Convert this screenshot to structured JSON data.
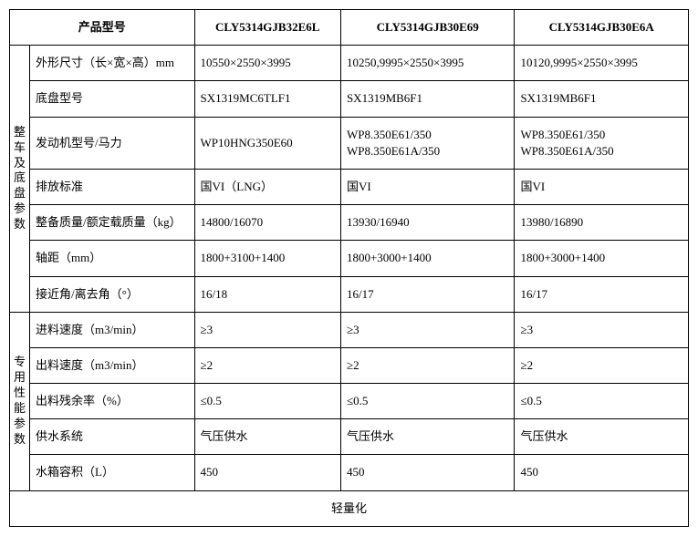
{
  "header": {
    "model_label": "产品型号",
    "models": [
      "CLY5314GJB32E6L",
      "CLY5314GJB30E69",
      "CLY5314GJB30E6A"
    ]
  },
  "groups": [
    {
      "title": "整车及底盘参数",
      "rows": [
        {
          "label": "外形尺寸（长×宽×高）mm",
          "v": [
            "10550×2550×3995",
            "10250,9995×2550×3995",
            "10120,9995×2550×3995"
          ]
        },
        {
          "label": "底盘型号",
          "v": [
            "SX1319MC6TLF1",
            "SX1319MB6F1",
            "SX1319MB6F1"
          ]
        },
        {
          "label": "发动机型号/马力",
          "v": [
            "WP10HNG350E60",
            "WP8.350E61/350\nWP8.350E61A/350",
            "WP8.350E61/350\nWP8.350E61A/350"
          ]
        },
        {
          "label": "排放标准",
          "v": [
            "国VI（LNG）",
            "国VI",
            "国VI"
          ]
        },
        {
          "label": "整备质量/额定载质量（kg）",
          "v": [
            "14800/16070",
            "13930/16940",
            "13980/16890"
          ]
        },
        {
          "label": "轴距（mm）",
          "v": [
            "1800+3100+1400",
            "1800+3000+1400",
            "1800+3000+1400"
          ]
        },
        {
          "label": "接近角/离去角（°）",
          "v": [
            "16/18",
            "16/17",
            "16/17"
          ]
        }
      ]
    },
    {
      "title": "专用性能参数",
      "rows": [
        {
          "label": "进料速度（m3/min）",
          "v": [
            "≥3",
            "≥3",
            "≥3"
          ]
        },
        {
          "label": "出料速度（m3/min）",
          "v": [
            "≥2",
            "≥2",
            "≥2"
          ]
        },
        {
          "label": "出料残余率（%）",
          "v": [
            "≤0.5",
            "≤0.5",
            "≤0.5"
          ]
        },
        {
          "label": "供水系统",
          "v": [
            "气压供水",
            "气压供水",
            "气压供水"
          ]
        },
        {
          "label": "水箱容积（L）",
          "v": [
            "450",
            "450",
            "450"
          ]
        }
      ]
    }
  ],
  "footer": "轻量化"
}
